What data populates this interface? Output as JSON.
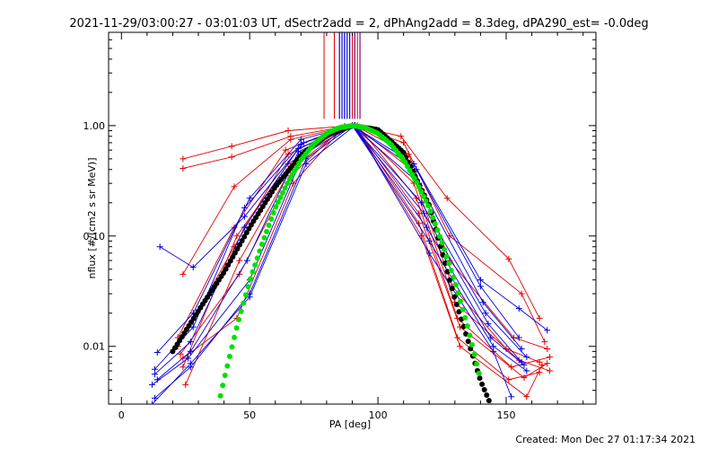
{
  "chart_data": {
    "type": "line",
    "title": "2021-11-29/03:00:27 - 03:01:03 UT, dSectr2add = 2, dPhAng2add = 8.3deg, dPA290_est= -0.0deg",
    "xlabel": "PA [deg]",
    "ylabel": "nflux [#/(cm2 s sr MeV)]",
    "footer": "Created: Mon Dec 27 01:17:34 2021",
    "xlim": [
      -5,
      185
    ],
    "ylim": [
      0.003,
      7.0
    ],
    "yscale": "log",
    "x_ticks": [
      0,
      50,
      100,
      150
    ],
    "x_tick_labels": [
      "0",
      "50",
      "100",
      "150"
    ],
    "y_ticks": [
      0.01,
      0.1,
      1.0
    ],
    "y_tick_labels": [
      "0.01",
      "0.10",
      "1.00"
    ],
    "colors": {
      "red": "#e00000",
      "blue": "#0000e0",
      "black": "#000000",
      "green": "#00e000"
    },
    "vertical_markers": {
      "y_from": 1.15,
      "red_x": [
        79,
        83,
        87,
        90,
        92
      ],
      "blue_x": [
        85,
        86,
        87,
        88,
        89
      ],
      "purple_x": [
        91,
        93
      ]
    },
    "series": [
      {
        "color": "red",
        "x": [
          24,
          43,
          65,
          87,
          91,
          109,
          127,
          151,
          163
        ],
        "values": [
          0.5,
          0.65,
          0.9,
          0.99,
          1.0,
          0.8,
          0.22,
          0.062,
          0.018
        ]
      },
      {
        "color": "red",
        "x": [
          24,
          43,
          66,
          87,
          91,
          110,
          128,
          156,
          165
        ],
        "values": [
          0.41,
          0.52,
          0.8,
          0.98,
          1.0,
          0.7,
          0.1,
          0.03,
          0.011
        ]
      },
      {
        "color": "red",
        "x": [
          24,
          44,
          66,
          87,
          91,
          112,
          128,
          153,
          166
        ],
        "values": [
          0.045,
          0.28,
          0.75,
          0.97,
          1.0,
          0.55,
          0.06,
          0.012,
          0.0095
        ]
      },
      {
        "color": "red",
        "x": [
          22,
          44,
          64,
          86,
          91,
          113,
          129,
          150,
          163
        ],
        "values": [
          0.012,
          0.12,
          0.6,
          0.96,
          1.0,
          0.4,
          0.035,
          0.0095,
          0.0072
        ]
      },
      {
        "color": "red",
        "x": [
          22,
          44,
          65,
          86,
          91,
          114,
          130,
          155,
          167
        ],
        "values": [
          0.01,
          0.08,
          0.55,
          0.95,
          1.0,
          0.3,
          0.025,
          0.0075,
          0.006
        ]
      },
      {
        "color": "red",
        "x": [
          24,
          45,
          65,
          86,
          92,
          115,
          131,
          152,
          167
        ],
        "values": [
          0.0065,
          0.1,
          0.45,
          0.93,
          1.0,
          0.22,
          0.018,
          0.0065,
          0.008
        ]
      },
      {
        "color": "red",
        "x": [
          25,
          46,
          66,
          86,
          91,
          116,
          132,
          157,
          166
        ],
        "values": [
          0.0045,
          0.06,
          0.4,
          0.92,
          1.0,
          0.16,
          0.015,
          0.0052,
          0.007
        ]
      },
      {
        "color": "red",
        "x": [
          23,
          46,
          66,
          85,
          91,
          116,
          131,
          151,
          163
        ],
        "values": [
          0.0085,
          0.045,
          0.35,
          0.9,
          1.0,
          0.13,
          0.012,
          0.005,
          0.0058
        ]
      },
      {
        "color": "red",
        "x": [
          24,
          45,
          67,
          85,
          91,
          117,
          132,
          158,
          164
        ],
        "values": [
          0.0078,
          0.018,
          0.3,
          0.88,
          1.0,
          0.1,
          0.01,
          0.0035,
          0.0068
        ]
      },
      {
        "color": "blue",
        "x": [
          15,
          28,
          48,
          71,
          90,
          114,
          140,
          155,
          166
        ],
        "values": [
          0.08,
          0.052,
          0.15,
          0.7,
          1.0,
          0.45,
          0.04,
          0.022,
          0.014
        ]
      },
      {
        "color": "blue",
        "x": [
          14,
          28,
          50,
          70,
          90,
          115,
          140,
          155
        ],
        "values": [
          0.0088,
          0.02,
          0.22,
          0.75,
          1.0,
          0.4,
          0.035,
          0.012
        ]
      },
      {
        "color": "blue",
        "x": [
          13,
          28,
          48,
          70,
          90,
          116,
          141,
          156
        ],
        "values": [
          0.0062,
          0.015,
          0.18,
          0.68,
          1.0,
          0.3,
          0.025,
          0.0095
        ]
      },
      {
        "color": "blue",
        "x": [
          13,
          27,
          48,
          69,
          90,
          117,
          142,
          158
        ],
        "values": [
          0.0056,
          0.011,
          0.12,
          0.62,
          1.0,
          0.2,
          0.02,
          0.008
        ]
      },
      {
        "color": "blue",
        "x": [
          14,
          27,
          49,
          69,
          90,
          118,
          143,
          156
        ],
        "values": [
          0.005,
          0.009,
          0.06,
          0.58,
          1.0,
          0.16,
          0.016,
          0.0072
        ]
      },
      {
        "color": "blue",
        "x": [
          12,
          26,
          50,
          71,
          90,
          119,
          144,
          157
        ],
        "values": [
          0.0045,
          0.0078,
          0.04,
          0.55,
          1.0,
          0.12,
          0.012,
          0.0068
        ]
      },
      {
        "color": "blue",
        "x": [
          13,
          27,
          50,
          72,
          90,
          120,
          145,
          158
        ],
        "values": [
          0.0034,
          0.0065,
          0.03,
          0.5,
          1.0,
          0.09,
          0.01,
          0.006
        ]
      },
      {
        "color": "blue",
        "x": [
          12,
          27,
          50,
          72,
          91,
          120,
          145,
          152
        ],
        "values": [
          0.003,
          0.007,
          0.028,
          0.45,
          1.0,
          0.07,
          0.009,
          0.0035
        ]
      }
    ],
    "fits": [
      {
        "color": "black",
        "style": "thick-dotted",
        "x": [
          20,
          30,
          40,
          50,
          60,
          70,
          80,
          90,
          100,
          110,
          120,
          130,
          140,
          145
        ],
        "values": [
          0.009,
          0.021,
          0.047,
          0.12,
          0.28,
          0.54,
          0.82,
          1.0,
          0.92,
          0.57,
          0.19,
          0.027,
          0.0049,
          0.0026
        ]
      },
      {
        "color": "green",
        "style": "thick-dotted",
        "x": [
          35,
          40,
          45,
          50,
          55,
          60,
          65,
          70,
          75,
          80,
          85,
          90,
          95,
          100,
          105,
          110,
          115,
          120,
          125,
          130,
          135,
          140
        ],
        "values": [
          0.0015,
          0.005,
          0.015,
          0.039,
          0.087,
          0.18,
          0.31,
          0.49,
          0.68,
          0.85,
          0.96,
          1.0,
          0.96,
          0.85,
          0.68,
          0.49,
          0.31,
          0.18,
          0.087,
          0.039,
          0.015,
          0.005
        ]
      }
    ]
  }
}
